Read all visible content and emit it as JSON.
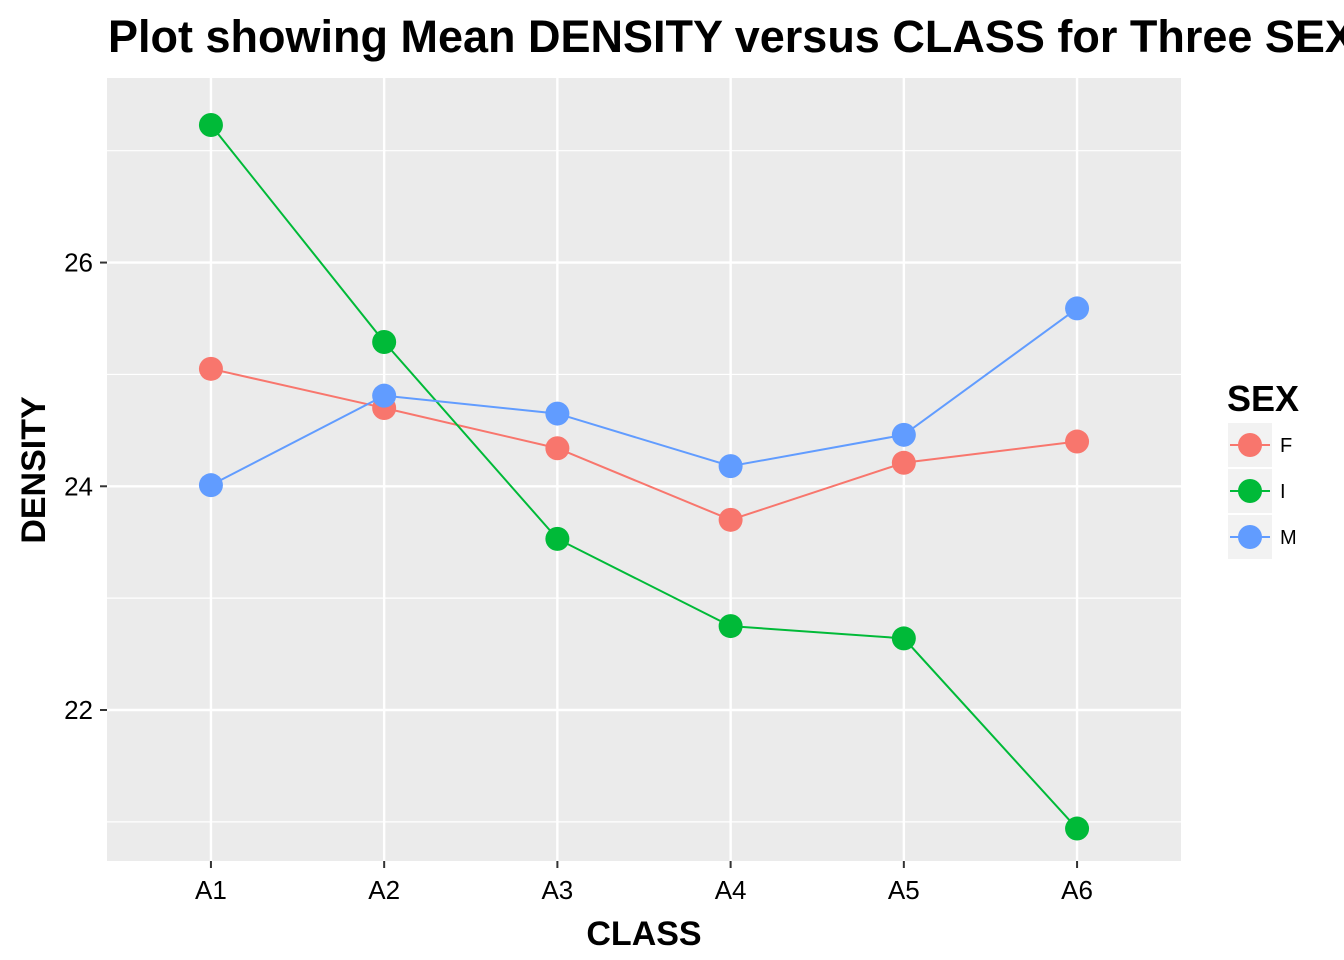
{
  "chart_data": {
    "type": "line",
    "title": "Plot showing Mean DENSITY versus CLASS for Three SEX",
    "xlabel": "CLASS",
    "ylabel": "DENSITY",
    "categories": [
      "A1",
      "A2",
      "A3",
      "A4",
      "A5",
      "A6"
    ],
    "ylim": [
      20.65,
      27.65
    ],
    "yticks": [
      22,
      24,
      26
    ],
    "ytick_labels": [
      "22",
      "24",
      "26"
    ],
    "grid": true,
    "legend": {
      "title": "SEX",
      "placement": "right"
    },
    "series": [
      {
        "name": "F",
        "color": "#F8766D",
        "values": [
          25.05,
          24.7,
          24.34,
          23.7,
          24.21,
          24.4
        ]
      },
      {
        "name": "I",
        "color": "#00BA38",
        "values": [
          27.23,
          25.29,
          23.53,
          22.75,
          22.64,
          20.94
        ]
      },
      {
        "name": "M",
        "color": "#619CFF",
        "values": [
          24.01,
          24.81,
          24.65,
          24.18,
          24.46,
          25.59
        ]
      }
    ],
    "panel_background": "#EBEBEB",
    "grid_color": "#FFFFFF"
  }
}
